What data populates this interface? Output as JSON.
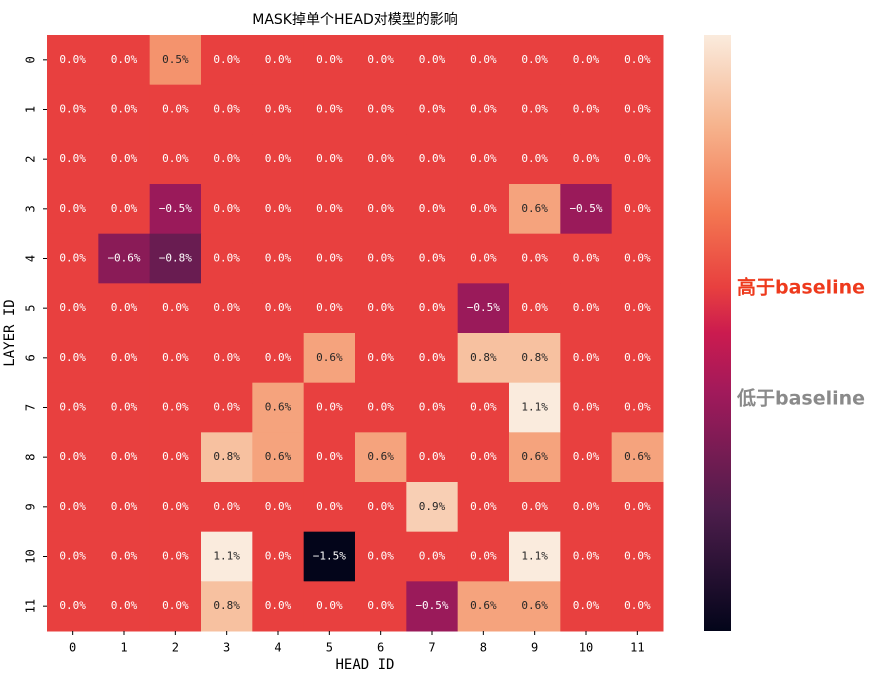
{
  "chart_data": {
    "type": "heatmap",
    "title": "MASK掉单个HEAD对模型的影响",
    "xlabel": "HEAD ID",
    "ylabel": "LAYER ID",
    "x_categories": [
      "0",
      "1",
      "2",
      "3",
      "4",
      "5",
      "6",
      "7",
      "8",
      "9",
      "10",
      "11"
    ],
    "y_categories": [
      "0",
      "1",
      "2",
      "3",
      "4",
      "5",
      "6",
      "7",
      "8",
      "9",
      "10",
      "11"
    ],
    "values": [
      [
        0,
        0,
        0.5,
        0,
        0,
        0,
        0,
        0,
        0,
        0,
        0,
        0
      ],
      [
        0,
        0,
        0,
        0,
        0,
        0,
        0,
        0,
        0,
        0,
        0,
        0
      ],
      [
        0,
        0,
        0,
        0,
        0,
        0,
        0,
        0,
        0,
        0,
        0,
        0
      ],
      [
        0,
        0,
        -0.5,
        0,
        0,
        0,
        0,
        0,
        0,
        0.6,
        -0.5,
        0
      ],
      [
        0,
        -0.6,
        -0.8,
        0,
        0,
        0,
        0,
        0,
        0,
        0,
        0,
        0
      ],
      [
        0,
        0,
        0,
        0,
        0,
        0,
        0,
        0,
        -0.5,
        0,
        0,
        0
      ],
      [
        0,
        0,
        0,
        0,
        0,
        0.6,
        0,
        0,
        0.8,
        0.8,
        0,
        0
      ],
      [
        0,
        0,
        0,
        0,
        0.6,
        0,
        0,
        0,
        0,
        1.1,
        0,
        0
      ],
      [
        0,
        0,
        0,
        0.8,
        0.6,
        0,
        0.6,
        0,
        0,
        0.6,
        0,
        0.6
      ],
      [
        0,
        0,
        0,
        0,
        0,
        0,
        0,
        0.9,
        0,
        0,
        0,
        0
      ],
      [
        0,
        0,
        0,
        1.1,
        0,
        -1.5,
        0,
        0,
        0,
        1.1,
        0,
        0
      ],
      [
        0,
        0,
        0,
        0.8,
        0,
        0,
        0,
        -0.5,
        0.6,
        0.6,
        0,
        0
      ]
    ],
    "value_labels": [
      [
        "0.0%",
        "0.0%",
        "0.5%",
        "0.0%",
        "0.0%",
        "0.0%",
        "0.0%",
        "0.0%",
        "0.0%",
        "0.0%",
        "0.0%",
        "0.0%"
      ],
      [
        "0.0%",
        "0.0%",
        "0.0%",
        "0.0%",
        "0.0%",
        "0.0%",
        "0.0%",
        "0.0%",
        "0.0%",
        "0.0%",
        "0.0%",
        "0.0%"
      ],
      [
        "0.0%",
        "0.0%",
        "0.0%",
        "0.0%",
        "0.0%",
        "0.0%",
        "0.0%",
        "0.0%",
        "0.0%",
        "0.0%",
        "0.0%",
        "0.0%"
      ],
      [
        "0.0%",
        "0.0%",
        "−0.5%",
        "0.0%",
        "0.0%",
        "0.0%",
        "0.0%",
        "0.0%",
        "0.0%",
        "0.6%",
        "−0.5%",
        "0.0%"
      ],
      [
        "0.0%",
        "−0.6%",
        "−0.8%",
        "0.0%",
        "0.0%",
        "0.0%",
        "0.0%",
        "0.0%",
        "0.0%",
        "0.0%",
        "0.0%",
        "0.0%"
      ],
      [
        "0.0%",
        "0.0%",
        "0.0%",
        "0.0%",
        "0.0%",
        "0.0%",
        "0.0%",
        "0.0%",
        "−0.5%",
        "0.0%",
        "0.0%",
        "0.0%"
      ],
      [
        "0.0%",
        "0.0%",
        "0.0%",
        "0.0%",
        "0.0%",
        "0.6%",
        "0.0%",
        "0.0%",
        "0.8%",
        "0.8%",
        "0.0%",
        "0.0%"
      ],
      [
        "0.0%",
        "0.0%",
        "0.0%",
        "0.0%",
        "0.6%",
        "0.0%",
        "0.0%",
        "0.0%",
        "0.0%",
        "1.1%",
        "0.0%",
        "0.0%"
      ],
      [
        "0.0%",
        "0.0%",
        "0.0%",
        "0.8%",
        "0.6%",
        "0.0%",
        "0.6%",
        "0.0%",
        "0.0%",
        "0.6%",
        "0.0%",
        "0.6%"
      ],
      [
        "0.0%",
        "0.0%",
        "0.0%",
        "0.0%",
        "0.0%",
        "0.0%",
        "0.0%",
        "0.9%",
        "0.0%",
        "0.0%",
        "0.0%",
        "0.0%"
      ],
      [
        "0.0%",
        "0.0%",
        "0.0%",
        "1.1%",
        "0.0%",
        "−1.5%",
        "0.0%",
        "0.0%",
        "0.0%",
        "1.1%",
        "0.0%",
        "0.0%"
      ],
      [
        "0.0%",
        "0.0%",
        "0.0%",
        "0.8%",
        "0.0%",
        "0.0%",
        "0.0%",
        "−0.5%",
        "0.6%",
        "0.6%",
        "0.0%",
        "0.0%"
      ]
    ],
    "zlim": [
      -1.5,
      1.1
    ],
    "colormap": "rocket",
    "annotations": [
      {
        "text": "高于baseline",
        "color": "#ee3a1d"
      },
      {
        "text": "低于baseline",
        "color": "#8a8a8a"
      }
    ]
  }
}
